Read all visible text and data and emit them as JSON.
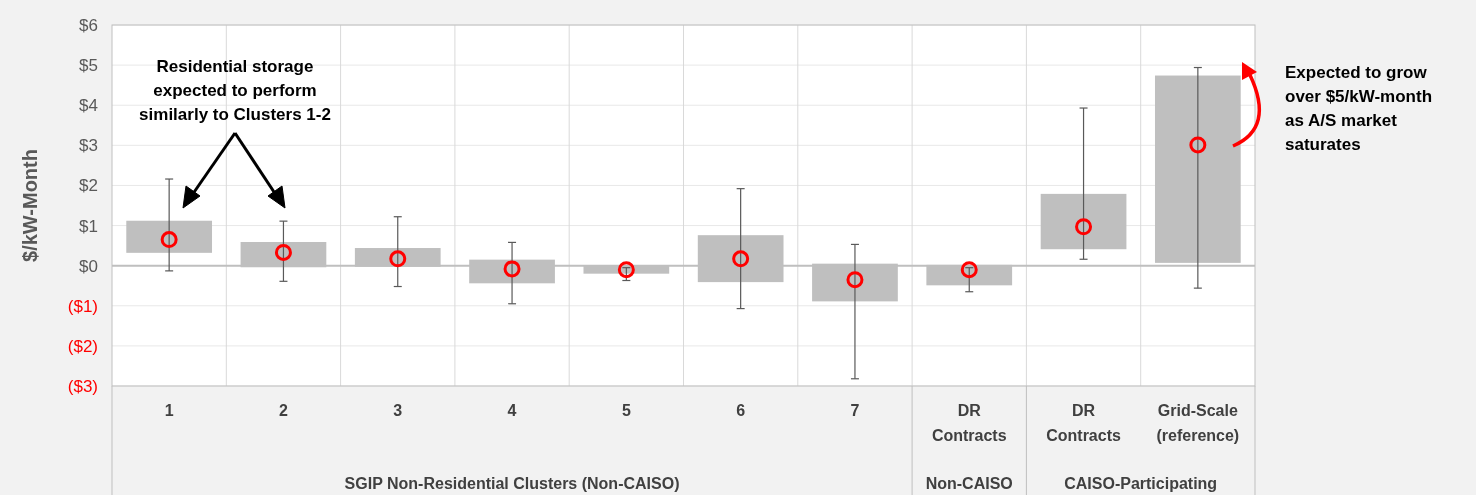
{
  "chart_data": {
    "type": "bar",
    "ylabel": "$/kW-Month",
    "categories": [
      "1",
      "2",
      "3",
      "4",
      "5",
      "6",
      "7",
      "DR Contracts",
      "DR Contracts",
      "Grid-Scale (reference)"
    ],
    "series": [
      {
        "color": "#bfbfbf",
        "base": [
          0.32,
          -0.04,
          -0.03,
          -0.44,
          -0.2,
          -0.41,
          -0.89,
          -0.49,
          0.41,
          0.07
        ],
        "values": [
          0.8,
          0.63,
          0.47,
          0.59,
          0.2,
          1.17,
          0.94,
          0.51,
          1.38,
          4.67
        ]
      },
      {
        "type": "scatter",
        "color": "#ff0000",
        "marker": "circle",
        "values": [
          0.65,
          0.33,
          0.17,
          -0.08,
          -0.1,
          0.17,
          -0.35,
          -0.1,
          0.97,
          3.01
        ],
        "errors": [
          [
            -0.13,
            2.16
          ],
          [
            -0.39,
            1.11
          ],
          [
            -0.52,
            1.22
          ],
          [
            -0.95,
            0.58
          ],
          [
            -0.37,
            -0.05
          ],
          [
            -1.07,
            1.92
          ],
          [
            -2.82,
            0.53
          ],
          [
            -0.65,
            -0.05
          ],
          [
            0.16,
            3.93
          ],
          [
            -0.56,
            4.94
          ]
        ]
      }
    ],
    "ylim": [
      -3,
      6
    ],
    "yticks": [
      {
        "value": -3,
        "label": "($3)"
      },
      {
        "value": -2,
        "label": "($2)"
      },
      {
        "value": -1,
        "label": "($1)"
      },
      {
        "value": 0,
        "label": "$0"
      },
      {
        "value": 1,
        "label": "$1"
      },
      {
        "value": 2,
        "label": "$2"
      },
      {
        "value": 3,
        "label": "$3"
      },
      {
        "value": 4,
        "label": "$4"
      },
      {
        "value": 5,
        "label": "$5"
      },
      {
        "value": 6,
        "label": "$6"
      }
    ],
    "grid": true,
    "annotations": [
      "Residential storage expected to perform similarly to Clusters 1-2",
      "Expected to grow over $5/kW-month as A/S market saturates",
      "SGIP Non-Residential Clusters (Non-CAISO)",
      "Non-CAISO",
      "CAISO-Participating"
    ]
  }
}
